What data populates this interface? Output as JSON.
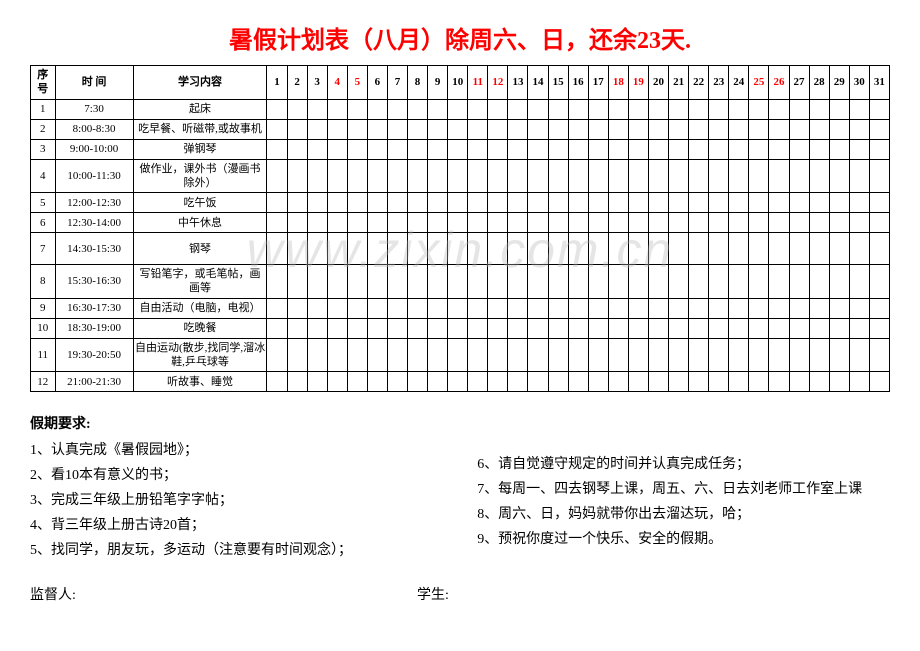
{
  "title": {
    "text": "暑假计划表（八月）除周六、日，还余23天.",
    "color": "#ff0000"
  },
  "headers": {
    "seq": "序号",
    "time": "时   间",
    "content": "学习内容"
  },
  "days": [
    {
      "n": "1",
      "c": "#000000"
    },
    {
      "n": "2",
      "c": "#000000"
    },
    {
      "n": "3",
      "c": "#000000"
    },
    {
      "n": "4",
      "c": "#ff0000"
    },
    {
      "n": "5",
      "c": "#ff0000"
    },
    {
      "n": "6",
      "c": "#000000"
    },
    {
      "n": "7",
      "c": "#000000"
    },
    {
      "n": "8",
      "c": "#000000"
    },
    {
      "n": "9",
      "c": "#000000"
    },
    {
      "n": "10",
      "c": "#000000"
    },
    {
      "n": "11",
      "c": "#ff0000"
    },
    {
      "n": "12",
      "c": "#ff0000"
    },
    {
      "n": "13",
      "c": "#000000"
    },
    {
      "n": "14",
      "c": "#000000"
    },
    {
      "n": "15",
      "c": "#000000"
    },
    {
      "n": "16",
      "c": "#000000"
    },
    {
      "n": "17",
      "c": "#000000"
    },
    {
      "n": "18",
      "c": "#ff0000"
    },
    {
      "n": "19",
      "c": "#ff0000"
    },
    {
      "n": "20",
      "c": "#000000"
    },
    {
      "n": "21",
      "c": "#000000"
    },
    {
      "n": "22",
      "c": "#000000"
    },
    {
      "n": "23",
      "c": "#000000"
    },
    {
      "n": "24",
      "c": "#000000"
    },
    {
      "n": "25",
      "c": "#ff0000"
    },
    {
      "n": "26",
      "c": "#ff0000"
    },
    {
      "n": "27",
      "c": "#000000"
    },
    {
      "n": "28",
      "c": "#000000"
    },
    {
      "n": "29",
      "c": "#000000"
    },
    {
      "n": "30",
      "c": "#000000"
    },
    {
      "n": "31",
      "c": "#000000"
    }
  ],
  "rows": [
    {
      "seq": "1",
      "time": "7:30",
      "content": "起床",
      "tall": false
    },
    {
      "seq": "2",
      "time": "8:00-8:30",
      "content": "吃早餐、听磁带,或故事机",
      "tall": false
    },
    {
      "seq": "3",
      "time": "9:00-10:00",
      "content": "弹钢琴",
      "tall": false
    },
    {
      "seq": "4",
      "time": "10:00-11:30",
      "content": "做作业，课外书（漫画书除外）",
      "tall": true
    },
    {
      "seq": "5",
      "time": "12:00-12:30",
      "content": "吃午饭",
      "tall": false
    },
    {
      "seq": "6",
      "time": "12:30-14:00",
      "content": "中午休息",
      "tall": false
    },
    {
      "seq": "7",
      "time": "14:30-15:30",
      "content": "钢琴",
      "tall": true
    },
    {
      "seq": "8",
      "time": "15:30-16:30",
      "content": "写铅笔字，或毛笔帖，画画等",
      "tall": true
    },
    {
      "seq": "9",
      "time": "16:30-17:30",
      "content": "自由活动（电脑，电视）",
      "tall": false
    },
    {
      "seq": "10",
      "time": "18:30-19:00",
      "content": "吃晚餐",
      "tall": false
    },
    {
      "seq": "11",
      "time": "19:30-20:50",
      "content": "自由运动(散步,找同学,溜冰鞋,乒乓球等",
      "tall": true
    },
    {
      "seq": "12",
      "time": "21:00-21:30",
      "content": "听故事、睡觉",
      "tall": false
    }
  ],
  "requirements": {
    "title": "假期要求:",
    "left": [
      "1、认真完成《暑假园地》；",
      "2、看10本有意义的书；",
      "3、完成三年级上册铅笔字字帖；",
      "4、背三年级上册古诗20首；",
      "5、找同学，朋友玩，多运动（注意要有时间观念）；"
    ],
    "right": [
      "6、请自觉遵守规定的时间并认真完成任务；",
      "7、每周一、四去钢琴上课，周五、六、日去刘老师工作室上课",
      "8、周六、日，妈妈就带你出去溜达玩，哈；",
      "9、预祝你度过一个快乐、安全的假期。"
    ]
  },
  "signatures": {
    "supervisor": "监督人:",
    "student": "学生:"
  },
  "watermark": "www.zixin.com.cn"
}
